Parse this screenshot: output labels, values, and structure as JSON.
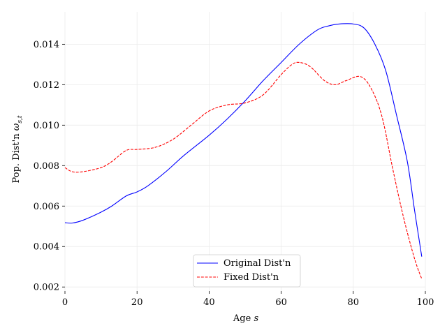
{
  "chart_data": {
    "type": "line",
    "xlabel_main": "Age ",
    "xlabel_italic": "s",
    "ylabel_main": "Pop. Dist'n ",
    "ylabel_symbol": "ω",
    "ylabel_subscript": "s,t",
    "xlim": [
      0,
      100
    ],
    "ylim": [
      0.0018,
      0.0156
    ],
    "xticks": [
      0,
      20,
      40,
      60,
      80,
      100
    ],
    "xtick_labels": [
      "0",
      "20",
      "40",
      "60",
      "80",
      "100"
    ],
    "yticks": [
      0.002,
      0.004,
      0.006,
      0.008,
      0.01,
      0.012,
      0.014
    ],
    "ytick_labels": [
      "0.002",
      "0.004",
      "0.006",
      "0.008",
      "0.010",
      "0.012",
      "0.014"
    ],
    "grid": true,
    "legend_position": "bottom-center",
    "series": [
      {
        "name": "Original Dist'n",
        "color": "#0000ff",
        "dash": "solid",
        "x": [
          0,
          2,
          5,
          10,
          13,
          17,
          20,
          23,
          28,
          33,
          40,
          45,
          50,
          55,
          60,
          65,
          70,
          73,
          76,
          80,
          83,
          86,
          89,
          92,
          95,
          97,
          99
        ],
        "y": [
          0.00518,
          0.00516,
          0.0053,
          0.0057,
          0.006,
          0.0065,
          0.0067,
          0.007,
          0.0077,
          0.0085,
          0.0095,
          0.0103,
          0.0112,
          0.0122,
          0.0131,
          0.014,
          0.0147,
          0.0149,
          0.015,
          0.015,
          0.0148,
          0.014,
          0.0127,
          0.0105,
          0.0082,
          0.0058,
          0.0035
        ]
      },
      {
        "name": "Fixed Dist'n",
        "color": "#ff0000",
        "dash": "dashed",
        "x": [
          0,
          2,
          5,
          10,
          13,
          17,
          20,
          25,
          30,
          35,
          40,
          45,
          50,
          55,
          60,
          63,
          65,
          68,
          72,
          75,
          78,
          82,
          85,
          88,
          91,
          94,
          97,
          99
        ],
        "y": [
          0.0079,
          0.0077,
          0.0077,
          0.0079,
          0.0082,
          0.00875,
          0.0088,
          0.0089,
          0.0093,
          0.01,
          0.0107,
          0.011,
          0.0111,
          0.0115,
          0.0125,
          0.013,
          0.0131,
          0.0129,
          0.0122,
          0.012,
          0.0122,
          0.0124,
          0.0118,
          0.0104,
          0.0078,
          0.0054,
          0.0034,
          0.0024
        ]
      }
    ]
  }
}
